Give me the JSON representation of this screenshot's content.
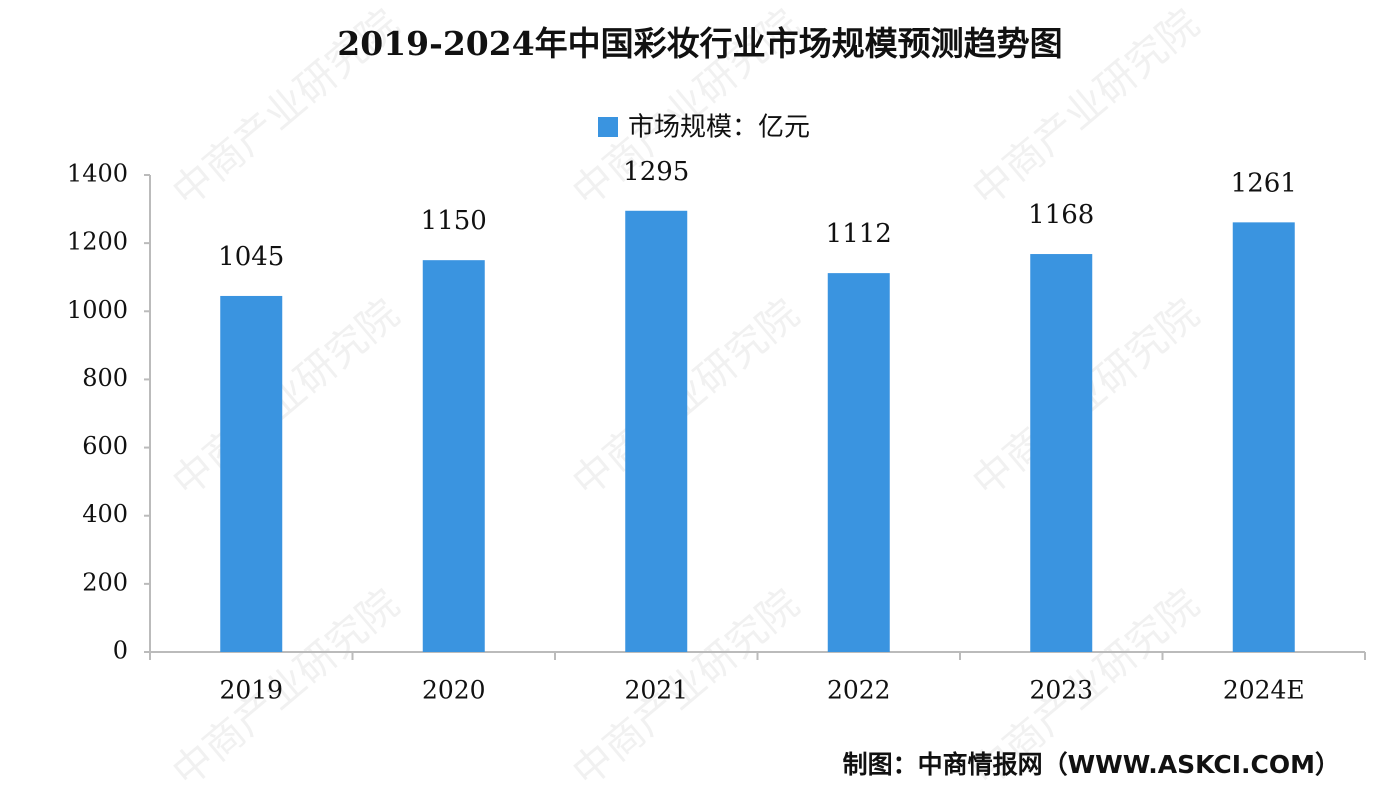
{
  "chart_data": {
    "type": "bar",
    "title": "2019-2024年中国彩妆行业市场规模预测趋势图",
    "categories": [
      "2019",
      "2020",
      "2021",
      "2022",
      "2023",
      "2024E"
    ],
    "series": [
      {
        "name": "市场规模：亿元",
        "color": "#3a94e0",
        "values": [
          1045,
          1150,
          1295,
          1112,
          1168,
          1261
        ]
      }
    ],
    "ylim": [
      0,
      1400
    ],
    "yticks": [
      0,
      200,
      400,
      600,
      800,
      1000,
      1200,
      1400
    ],
    "grid": false,
    "legend": "top",
    "source": "制图：中商情报网（WWW.ASKCI.COM）",
    "watermark": "中商产业研究院"
  }
}
